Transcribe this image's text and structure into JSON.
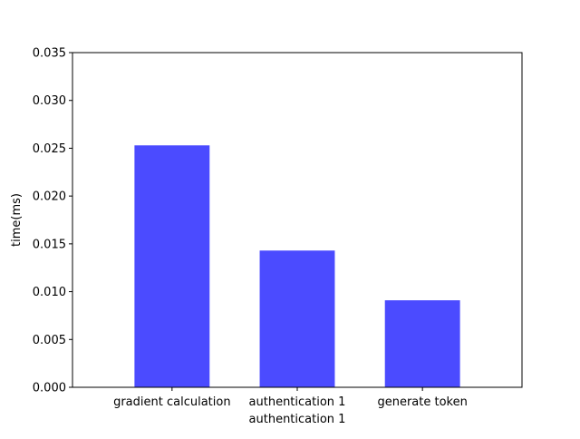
{
  "chart_data": {
    "type": "bar",
    "title": "",
    "xlabel": "",
    "ylabel": "time(ms)",
    "categories": [
      "gradient calculation",
      "authentication 1\nauthentication 1",
      "generate token"
    ],
    "values": [
      0.0253,
      0.0143,
      0.0091
    ],
    "ylim": [
      0,
      0.035
    ],
    "yticks": [
      "0.000",
      "0.005",
      "0.010",
      "0.015",
      "0.020",
      "0.025",
      "0.030",
      "0.035"
    ],
    "ytick_values": [
      0,
      0.005,
      0.01,
      0.015,
      0.02,
      0.025,
      0.03,
      0.035
    ],
    "bar_color": "#4b4bff",
    "grid": false,
    "legend": "none"
  }
}
